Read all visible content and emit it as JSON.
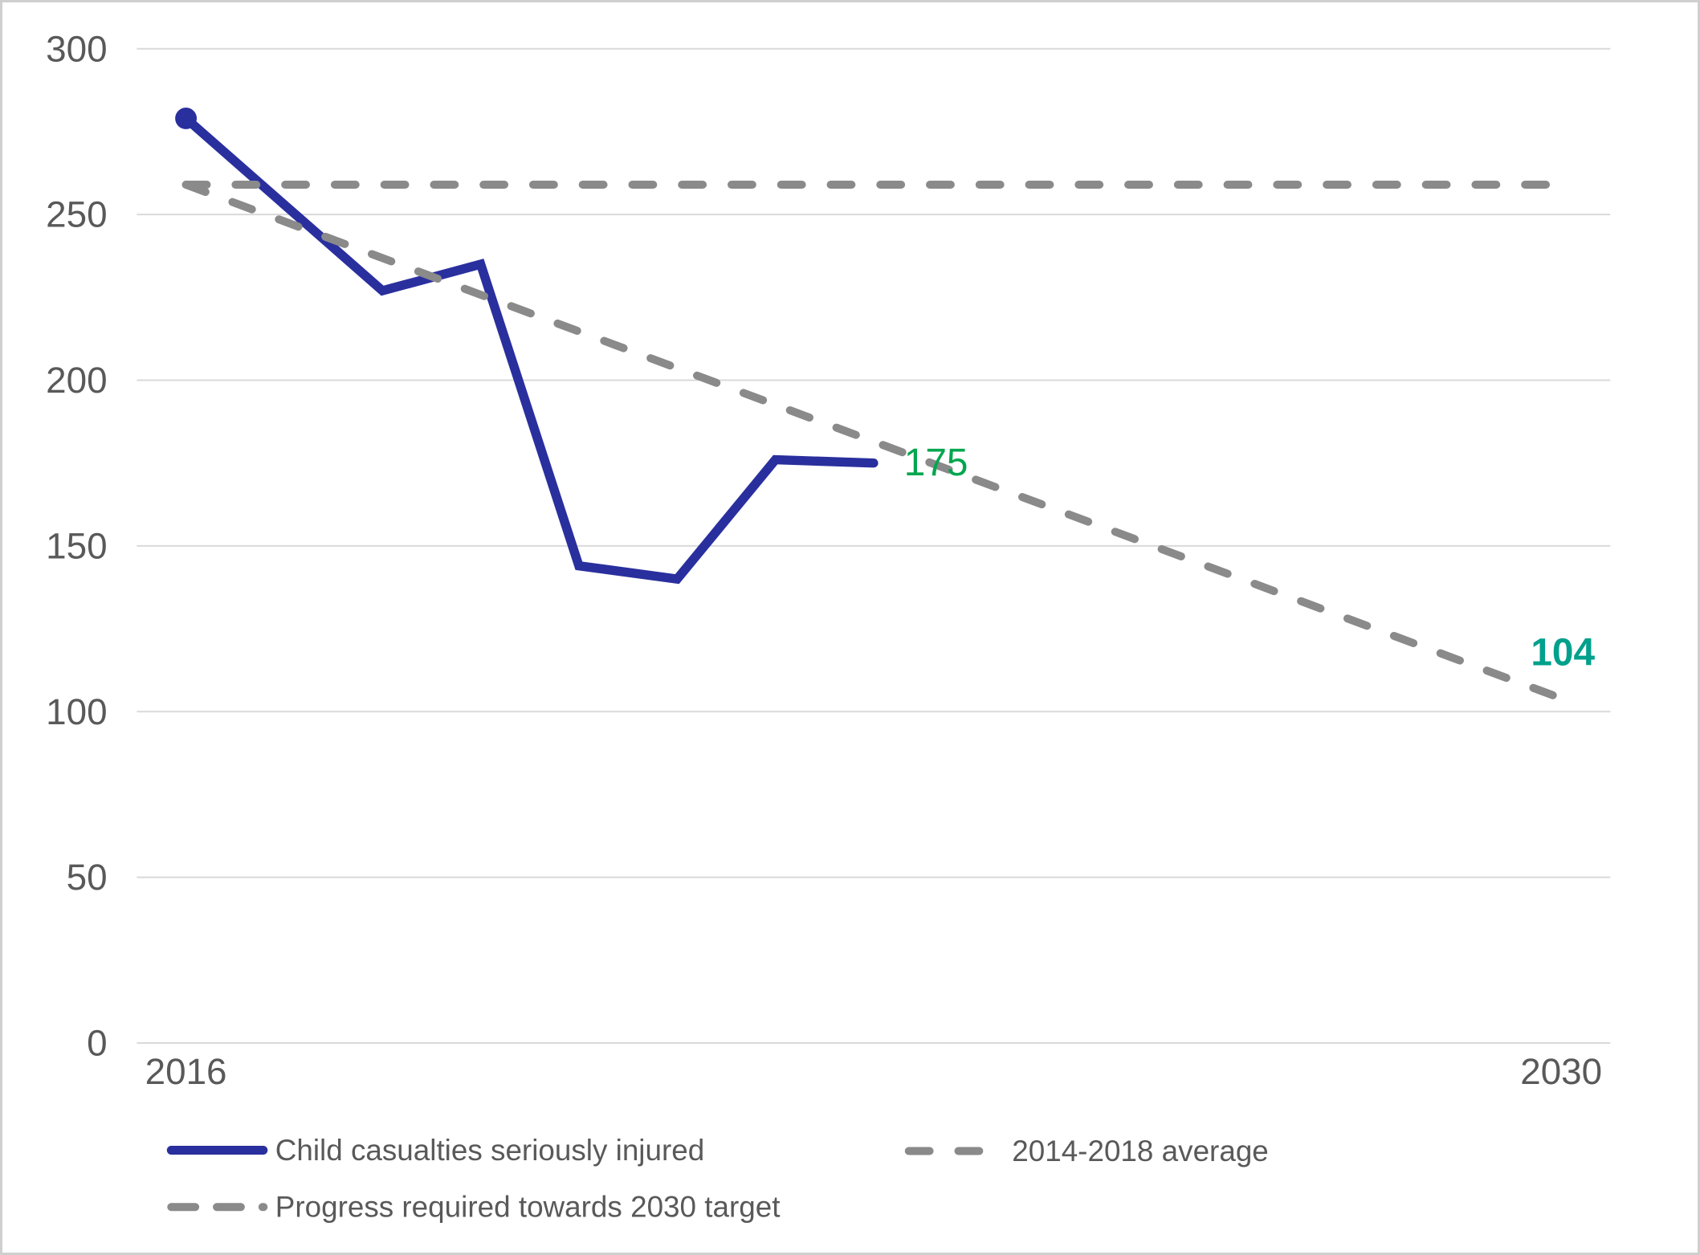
{
  "figure": {
    "background": "#ffffff",
    "border_color": "#cfcfcf"
  },
  "chart_data": {
    "type": "line",
    "title": "",
    "x_axis": {
      "range": [
        2016,
        2030
      ],
      "labels_visible": [
        "2016",
        "2030"
      ]
    },
    "y_axis": {
      "min": 0,
      "max": 300,
      "ticks": [
        300,
        250,
        200,
        150,
        100,
        50,
        0
      ],
      "gridlines": true,
      "gridline_color": "#d9d9d9",
      "tick_label_color": "#595959"
    },
    "legend_position": "bottom",
    "series": [
      {
        "name": "Child casualties seriously injured",
        "type": "line",
        "style": "solid",
        "color": "#2a2f9e",
        "marker_on_first_point": true,
        "x": [
          2016,
          2017,
          2018,
          2019,
          2020,
          2021,
          2022,
          2023
        ],
        "values": [
          279,
          253,
          227,
          235,
          144,
          140,
          176,
          175
        ],
        "end_label": {
          "text": "175",
          "color": "#00a64f",
          "bold": false
        }
      },
      {
        "name": "2014-2018 average",
        "type": "line",
        "style": "dashed",
        "color": "#8a8a8a",
        "x": [
          2016,
          2030
        ],
        "values": [
          259,
          259
        ]
      },
      {
        "name": "Progress required towards 2030 target",
        "type": "line",
        "style": "dashed",
        "color": "#8a8a8a",
        "x": [
          2016,
          2030
        ],
        "values": [
          259,
          104
        ],
        "end_label": {
          "text": "104",
          "color": "#00a08c",
          "bold": true
        }
      }
    ]
  }
}
